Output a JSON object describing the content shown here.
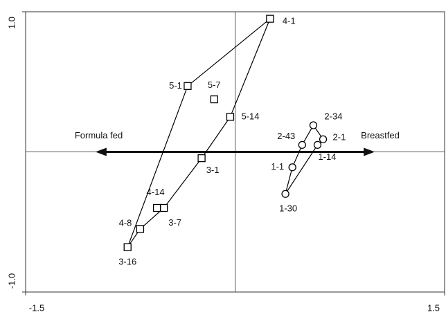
{
  "chart_data": {
    "type": "scatter",
    "xlim": [
      -1.5,
      1.5
    ],
    "ylim": [
      -1,
      1
    ],
    "xticks": [
      -1.5,
      1.5
    ],
    "yticks": [
      {
        "value": -1,
        "label": "-1.0"
      },
      {
        "value": 1,
        "label": "1.0"
      }
    ],
    "color": "#000000",
    "series": [
      {
        "marker": "square",
        "outline": "closed",
        "labels": [
          "4-1",
          "5-1",
          "3-16",
          "4-8",
          "3-7",
          "3-1",
          "5-14",
          "5-7",
          "4-14"
        ],
        "x": [
          0.25,
          -0.34,
          -0.77,
          -0.68,
          -0.51,
          -0.24,
          -0.035,
          -0.15,
          -0.56
        ],
        "y": [
          0.95,
          0.47,
          -0.68,
          -0.55,
          -0.4,
          -0.045,
          0.25,
          0.375,
          -0.4
        ],
        "outline_points": 7
      },
      {
        "marker": "circle",
        "outline": "closed",
        "labels": [
          "2-34",
          "2-1",
          "1-14",
          "1-30",
          "1-1",
          "2-43"
        ],
        "x": [
          0.56,
          0.63,
          0.59,
          0.36,
          0.41,
          0.48
        ],
        "y": [
          0.19,
          0.09,
          0.05,
          -0.3,
          -0.11,
          0.05
        ],
        "outline_points": 6
      }
    ],
    "arrow": {
      "x": [
        -1.0,
        1.0
      ],
      "y": 0,
      "left_label": "Formula fed",
      "right_label": "Breastfed"
    }
  }
}
